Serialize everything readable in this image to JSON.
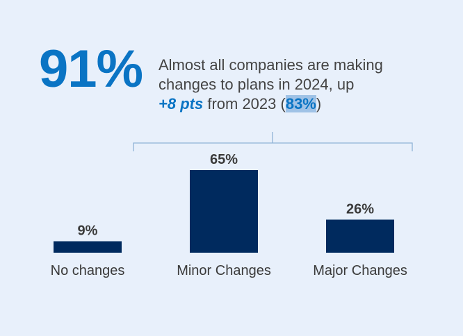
{
  "headline": {
    "stat": "91%",
    "line1": "Almost all companies are making",
    "line2": "changes to plans in 2024, up",
    "delta": "+8 pts",
    "from_text": "from 2023 (",
    "prev_value": "83%",
    "close_paren": ")"
  },
  "chart_data": {
    "type": "bar",
    "categories": [
      "No changes",
      "Minor Changes",
      "Major Changes"
    ],
    "values": [
      9,
      65,
      26
    ],
    "value_labels": [
      "9%",
      "65%",
      "26%"
    ],
    "ylim": [
      0,
      65
    ],
    "title": "",
    "xlabel": "",
    "ylabel": "",
    "bar_color": "#002a5e",
    "bracket_color": "#8fb3d6"
  }
}
